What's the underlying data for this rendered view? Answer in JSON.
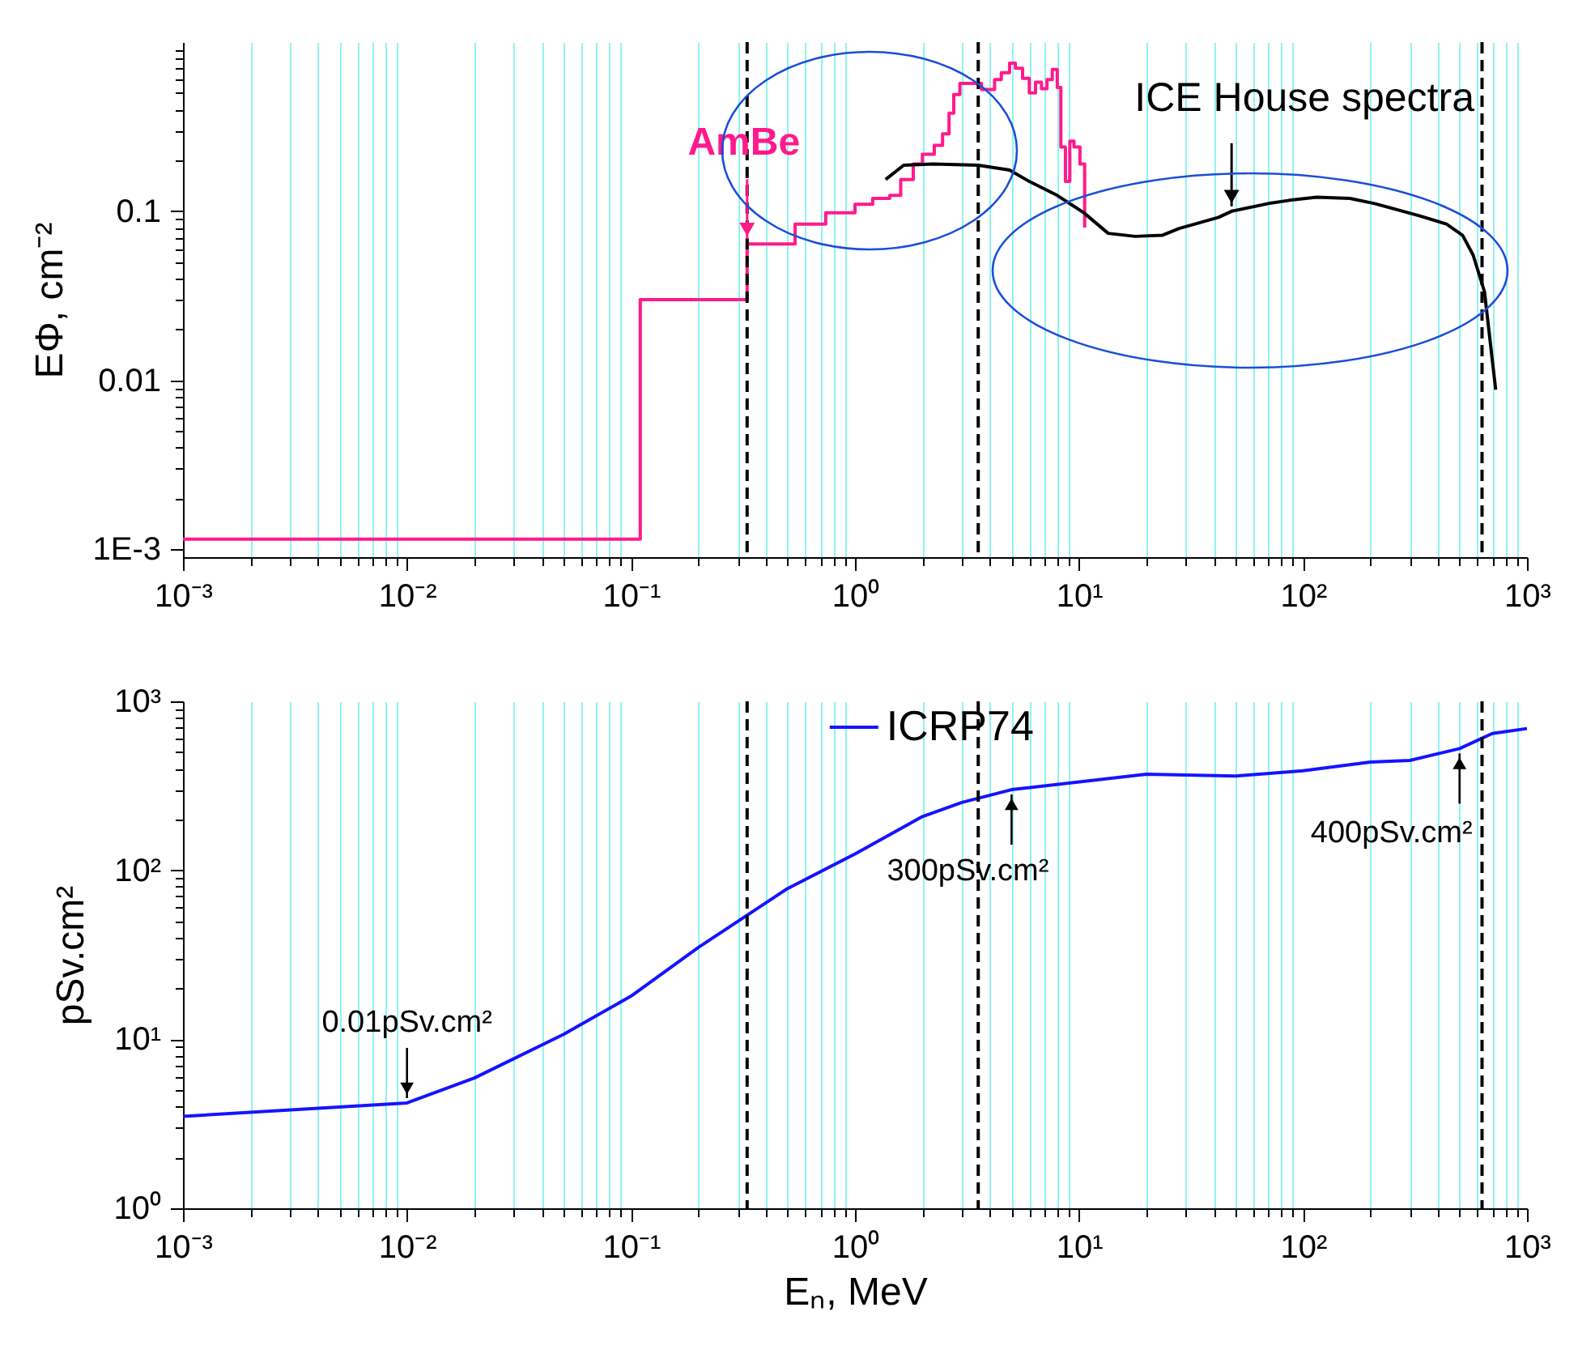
{
  "chart_data": [
    {
      "type": "step",
      "ylabel": "EΦ, cm⁻²",
      "xlim": [
        0.001,
        1000
      ],
      "ylim": [
        0.0009,
        1
      ],
      "log": "xy",
      "grid": "x",
      "legend": false,
      "xticks": [
        {
          "value": 0.001,
          "label": "10⁻³"
        },
        {
          "value": 0.002,
          "label": null
        },
        {
          "value": 0.003,
          "label": null
        },
        {
          "value": 0.004,
          "label": null
        },
        {
          "value": 0.005,
          "label": null
        },
        {
          "value": 0.006,
          "label": null
        },
        {
          "value": 0.007,
          "label": null
        },
        {
          "value": 0.008,
          "label": null
        },
        {
          "value": 0.009,
          "label": null
        },
        {
          "value": 0.01,
          "label": "10⁻²"
        },
        {
          "value": 0.02,
          "label": null
        },
        {
          "value": 0.03,
          "label": null
        },
        {
          "value": 0.04,
          "label": null
        },
        {
          "value": 0.05,
          "label": null
        },
        {
          "value": 0.06,
          "label": null
        },
        {
          "value": 0.07,
          "label": null
        },
        {
          "value": 0.08,
          "label": null
        },
        {
          "value": 0.09,
          "label": null
        },
        {
          "value": 0.1,
          "label": "10⁻¹"
        },
        {
          "value": 0.2,
          "label": null
        },
        {
          "value": 0.3,
          "label": null
        },
        {
          "value": 0.4,
          "label": null
        },
        {
          "value": 0.5,
          "label": null
        },
        {
          "value": 0.6,
          "label": null
        },
        {
          "value": 0.7,
          "label": null
        },
        {
          "value": 0.8,
          "label": null
        },
        {
          "value": 0.9,
          "label": null
        },
        {
          "value": 1,
          "label": "10⁰"
        },
        {
          "value": 2,
          "label": null
        },
        {
          "value": 3,
          "label": null
        },
        {
          "value": 4,
          "label": null
        },
        {
          "value": 5,
          "label": null
        },
        {
          "value": 6,
          "label": null
        },
        {
          "value": 7,
          "label": null
        },
        {
          "value": 8,
          "label": null
        },
        {
          "value": 9,
          "label": null
        },
        {
          "value": 10,
          "label": "10¹"
        },
        {
          "value": 20,
          "label": null
        },
        {
          "value": 30,
          "label": null
        },
        {
          "value": 40,
          "label": null
        },
        {
          "value": 50,
          "label": null
        },
        {
          "value": 60,
          "label": null
        },
        {
          "value": 70,
          "label": null
        },
        {
          "value": 80,
          "label": null
        },
        {
          "value": 90,
          "label": null
        },
        {
          "value": 100,
          "label": "10²"
        },
        {
          "value": 200,
          "label": null
        },
        {
          "value": 300,
          "label": null
        },
        {
          "value": 400,
          "label": null
        },
        {
          "value": 500,
          "label": null
        },
        {
          "value": 600,
          "label": null
        },
        {
          "value": 700,
          "label": null
        },
        {
          "value": 800,
          "label": null
        },
        {
          "value": 900,
          "label": null
        },
        {
          "value": 1000,
          "label": "10³"
        }
      ],
      "yticks": [
        {
          "value": 0.001,
          "label": "1E-3"
        },
        {
          "value": 0.002,
          "label": null
        },
        {
          "value": 0.003,
          "label": null
        },
        {
          "value": 0.004,
          "label": null
        },
        {
          "value": 0.005,
          "label": null
        },
        {
          "value": 0.006,
          "label": null
        },
        {
          "value": 0.007,
          "label": null
        },
        {
          "value": 0.008,
          "label": null
        },
        {
          "value": 0.009,
          "label": null
        },
        0.01,
        {
          "value": 0.02,
          "label": null
        },
        {
          "value": 0.03,
          "label": null
        },
        {
          "value": 0.04,
          "label": null
        },
        {
          "value": 0.05,
          "label": null
        },
        {
          "value": 0.06,
          "label": null
        },
        {
          "value": 0.07,
          "label": null
        },
        {
          "value": 0.08,
          "label": null
        },
        {
          "value": 0.09,
          "label": null
        },
        0.1,
        {
          "value": 0.2,
          "label": null
        },
        {
          "value": 0.3,
          "label": null
        },
        {
          "value": 0.4,
          "label": null
        },
        {
          "value": 0.5,
          "label": null
        },
        {
          "value": 0.6,
          "label": null
        },
        {
          "value": 0.7,
          "label": null
        },
        {
          "value": 0.8,
          "label": null
        },
        {
          "value": 0.9,
          "label": null
        }
      ],
      "ref_lines": [
        {
          "axis": "x",
          "value": 0.33,
          "line_style": "dashed",
          "color": "#000000"
        },
        {
          "axis": "x",
          "value": 3.55,
          "line_style": "dashed",
          "color": "#000000"
        },
        {
          "axis": "x",
          "value": 630,
          "line_style": "dashed",
          "color": "#000000"
        }
      ],
      "series": [
        {
          "name": "AmBe",
          "color": "#ff1a8c",
          "x": [
            0.001,
            0.11,
            0.33,
            0.54,
            0.74,
            1.0,
            1.2,
            1.43,
            1.6,
            1.82,
            2.0,
            2.26,
            2.46,
            2.63,
            2.76,
            2.94,
            3.67,
            4.2,
            4.5,
            4.9,
            5.2,
            5.6,
            6.0,
            6.4,
            6.8,
            7.2,
            7.6,
            8.0,
            8.3,
            8.7,
            9.1,
            9.5,
            10.1,
            10.6
          ],
          "values": [
            0.00115,
            0.03,
            0.064,
            0.084,
            0.098,
            0.11,
            0.119,
            0.124,
            0.154,
            0.19,
            0.217,
            0.245,
            0.287,
            0.38,
            0.49,
            0.57,
            0.525,
            0.6,
            0.66,
            0.75,
            0.7,
            0.61,
            0.5,
            0.58,
            0.53,
            0.6,
            0.69,
            0.54,
            0.24,
            0.15,
            0.26,
            0.24,
            0.19,
            0.08
          ]
        },
        {
          "name": "ICE House spectra",
          "type": "line",
          "color": "#000000",
          "x": [
            1.37,
            1.65,
            2.23,
            3.55,
            4.9,
            6.0,
            8.0,
            10.5,
            13.5,
            17.8,
            23.5,
            28,
            42,
            48,
            70,
            87,
            115,
            162,
            209,
            330,
            437,
            516,
            575,
            646,
            725
          ],
          "values": [
            0.154,
            0.187,
            0.19,
            0.187,
            0.175,
            0.15,
            0.124,
            0.098,
            0.074,
            0.071,
            0.072,
            0.079,
            0.092,
            0.1,
            0.111,
            0.116,
            0.121,
            0.119,
            0.111,
            0.094,
            0.084,
            0.072,
            0.055,
            0.0334,
            0.0088
          ]
        }
      ]
    },
    {
      "type": "line",
      "xlabel": "Eₙ, MeV",
      "ylabel": "pSv.cm²",
      "xlim": [
        0.001,
        1000
      ],
      "ylim": [
        1,
        1000
      ],
      "log": "xy",
      "grid": "x",
      "legend": "top",
      "xticks": [
        {
          "value": 0.001,
          "label": "10⁻³"
        },
        {
          "value": 0.002,
          "label": null
        },
        {
          "value": 0.003,
          "label": null
        },
        {
          "value": 0.004,
          "label": null
        },
        {
          "value": 0.005,
          "label": null
        },
        {
          "value": 0.006,
          "label": null
        },
        {
          "value": 0.007,
          "label": null
        },
        {
          "value": 0.008,
          "label": null
        },
        {
          "value": 0.009,
          "label": null
        },
        {
          "value": 0.01,
          "label": "10⁻²"
        },
        {
          "value": 0.02,
          "label": null
        },
        {
          "value": 0.03,
          "label": null
        },
        {
          "value": 0.04,
          "label": null
        },
        {
          "value": 0.05,
          "label": null
        },
        {
          "value": 0.06,
          "label": null
        },
        {
          "value": 0.07,
          "label": null
        },
        {
          "value": 0.08,
          "label": null
        },
        {
          "value": 0.09,
          "label": null
        },
        {
          "value": 0.1,
          "label": "10⁻¹"
        },
        {
          "value": 0.2,
          "label": null
        },
        {
          "value": 0.3,
          "label": null
        },
        {
          "value": 0.4,
          "label": null
        },
        {
          "value": 0.5,
          "label": null
        },
        {
          "value": 0.6,
          "label": null
        },
        {
          "value": 0.7,
          "label": null
        },
        {
          "value": 0.8,
          "label": null
        },
        {
          "value": 0.9,
          "label": null
        },
        {
          "value": 1,
          "label": "10⁰"
        },
        {
          "value": 2,
          "label": null
        },
        {
          "value": 3,
          "label": null
        },
        {
          "value": 4,
          "label": null
        },
        {
          "value": 5,
          "label": null
        },
        {
          "value": 6,
          "label": null
        },
        {
          "value": 7,
          "label": null
        },
        {
          "value": 8,
          "label": null
        },
        {
          "value": 9,
          "label": null
        },
        {
          "value": 10,
          "label": "10¹"
        },
        {
          "value": 20,
          "label": null
        },
        {
          "value": 30,
          "label": null
        },
        {
          "value": 40,
          "label": null
        },
        {
          "value": 50,
          "label": null
        },
        {
          "value": 60,
          "label": null
        },
        {
          "value": 70,
          "label": null
        },
        {
          "value": 80,
          "label": null
        },
        {
          "value": 90,
          "label": null
        },
        {
          "value": 100,
          "label": "10²"
        },
        {
          "value": 200,
          "label": null
        },
        {
          "value": 300,
          "label": null
        },
        {
          "value": 400,
          "label": null
        },
        {
          "value": 500,
          "label": null
        },
        {
          "value": 600,
          "label": null
        },
        {
          "value": 700,
          "label": null
        },
        {
          "value": 800,
          "label": null
        },
        {
          "value": 900,
          "label": null
        },
        {
          "value": 1000,
          "label": "10³"
        }
      ],
      "yticks": [
        {
          "value": 1,
          "label": "10⁰"
        },
        {
          "value": 2,
          "label": null
        },
        {
          "value": 3,
          "label": null
        },
        {
          "value": 4,
          "label": null
        },
        {
          "value": 5,
          "label": null
        },
        {
          "value": 6,
          "label": null
        },
        {
          "value": 7,
          "label": null
        },
        {
          "value": 8,
          "label": null
        },
        {
          "value": 9,
          "label": null
        },
        {
          "value": 10,
          "label": "10¹"
        },
        {
          "value": 20,
          "label": null
        },
        {
          "value": 30,
          "label": null
        },
        {
          "value": 40,
          "label": null
        },
        {
          "value": 50,
          "label": null
        },
        {
          "value": 60,
          "label": null
        },
        {
          "value": 70,
          "label": null
        },
        {
          "value": 80,
          "label": null
        },
        {
          "value": 90,
          "label": null
        },
        {
          "value": 100,
          "label": "10²"
        },
        {
          "value": 200,
          "label": null
        },
        {
          "value": 300,
          "label": null
        },
        {
          "value": 400,
          "label": null
        },
        {
          "value": 500,
          "label": null
        },
        {
          "value": 600,
          "label": null
        },
        {
          "value": 700,
          "label": null
        },
        {
          "value": 800,
          "label": null
        },
        {
          "value": 900,
          "label": null
        },
        {
          "value": 1000,
          "label": "10³"
        }
      ],
      "ref_lines": [
        {
          "axis": "x",
          "value": 0.33,
          "line_style": "dashed",
          "color": "#000000"
        },
        {
          "axis": "x",
          "value": 3.55,
          "line_style": "dashed",
          "color": "#000000"
        },
        {
          "axis": "x",
          "value": 630,
          "line_style": "dashed",
          "color": "#000000"
        }
      ],
      "annotations": [
        {
          "text": "0.01pSv.cm²",
          "x": 0.01,
          "y": 4.2
        },
        {
          "text": "300pSv.cm²",
          "x": 5,
          "y": 300
        },
        {
          "text": "400pSv.cm²",
          "x": 500,
          "y": 525
        }
      ],
      "series": [
        {
          "name": "ICRP74",
          "color": "#1414ff",
          "x": [
            0.001,
            0.01,
            0.02,
            0.05,
            0.1,
            0.2,
            0.5,
            1,
            2,
            3,
            5,
            20,
            50,
            100,
            200,
            300,
            500,
            700,
            1000
          ],
          "values": [
            3.5,
            4.2,
            5.9,
            10.7,
            18,
            35,
            78,
            125,
            208,
            252,
            300,
            370,
            361,
            388,
            437,
            447,
            525,
            645,
            690
          ]
        }
      ]
    }
  ]
}
